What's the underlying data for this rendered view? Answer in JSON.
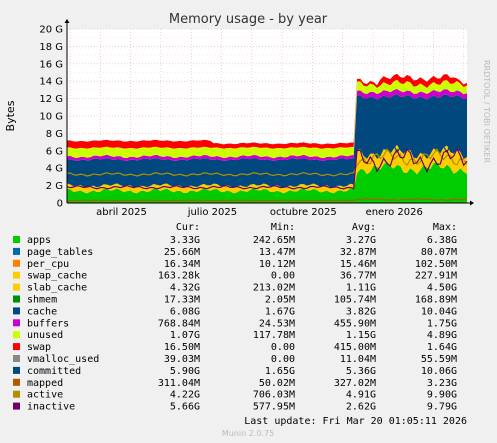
{
  "chart_data": {
    "type": "area",
    "title": "Memory usage - by year",
    "ylabel": "Bytes",
    "watermark": "RRDTOOL / TOBI OETIKER",
    "yticks": [
      "0",
      "2 G",
      "4 G",
      "6 G",
      "8 G",
      "10 G",
      "12 G",
      "14 G",
      "16 G",
      "18 G",
      "20 G"
    ],
    "ylim": [
      0,
      20
    ],
    "xticks": [
      "abril 2025",
      "julio 2025",
      "octubre 2025",
      "enero 2026"
    ],
    "grid": true,
    "legend_headers": {
      "cur": "Cur:",
      "min": "Min:",
      "avg": "Avg:",
      "max": "Max:"
    },
    "series": [
      {
        "name": "apps",
        "color": "#00cc00",
        "cur": "3.33G",
        "min": "242.65M",
        "avg": "3.27G",
        "max": "6.38G"
      },
      {
        "name": "page_tables",
        "color": "#0066b3",
        "cur": "25.66M",
        "min": "13.47M",
        "avg": "32.87M",
        "max": "80.07M"
      },
      {
        "name": "per_cpu",
        "color": "#ff8000",
        "cur": "16.34M",
        "min": "10.12M",
        "avg": "15.46M",
        "max": "102.50M"
      },
      {
        "name": "swap_cache",
        "color": "#ffcc00",
        "cur": "163.28k",
        "min": "0.00",
        "avg": "36.77M",
        "max": "227.91M"
      },
      {
        "name": "slab_cache",
        "color": "#ffcc00",
        "cur": "4.32G",
        "min": "213.02M",
        "avg": "1.11G",
        "max": "4.50G"
      },
      {
        "name": "shmem",
        "color": "#008f00",
        "cur": "17.33M",
        "min": "2.05M",
        "avg": "105.74M",
        "max": "168.89M"
      },
      {
        "name": "cache",
        "color": "#00487d",
        "cur": "6.08G",
        "min": "1.67G",
        "avg": "3.82G",
        "max": "10.04G"
      },
      {
        "name": "buffers",
        "color": "#cc00cc",
        "cur": "768.84M",
        "min": "24.53M",
        "avg": "455.90M",
        "max": "1.75G"
      },
      {
        "name": "unused",
        "color": "#ccff00",
        "cur": "1.07G",
        "min": "117.78M",
        "avg": "1.15G",
        "max": "4.89G"
      },
      {
        "name": "swap",
        "color": "#ff0000",
        "cur": "16.50M",
        "min": "0.00",
        "avg": "415.00M",
        "max": "1.64G"
      },
      {
        "name": "vmalloc_used",
        "color": "#888888",
        "cur": "39.03M",
        "min": "0.00",
        "avg": "11.04M",
        "max": "55.59M"
      },
      {
        "name": "committed",
        "color": "#00487d",
        "cur": "5.90G",
        "min": "1.65G",
        "avg": "5.36G",
        "max": "10.06G"
      },
      {
        "name": "mapped",
        "color": "#b35a00",
        "cur": "311.04M",
        "min": "50.02M",
        "avg": "327.02M",
        "max": "3.23G"
      },
      {
        "name": "active",
        "color": "#b38f00",
        "cur": "4.22G",
        "min": "706.03M",
        "avg": "4.91G",
        "max": "9.90G"
      },
      {
        "name": "inactive",
        "color": "#6b006b",
        "cur": "5.66G",
        "min": "577.95M",
        "avg": "2.62G",
        "max": "9.79G"
      }
    ],
    "last_update": "Last update: Fri Mar 20 01:05:11 2026",
    "footer": "Munin 2.0.75"
  }
}
